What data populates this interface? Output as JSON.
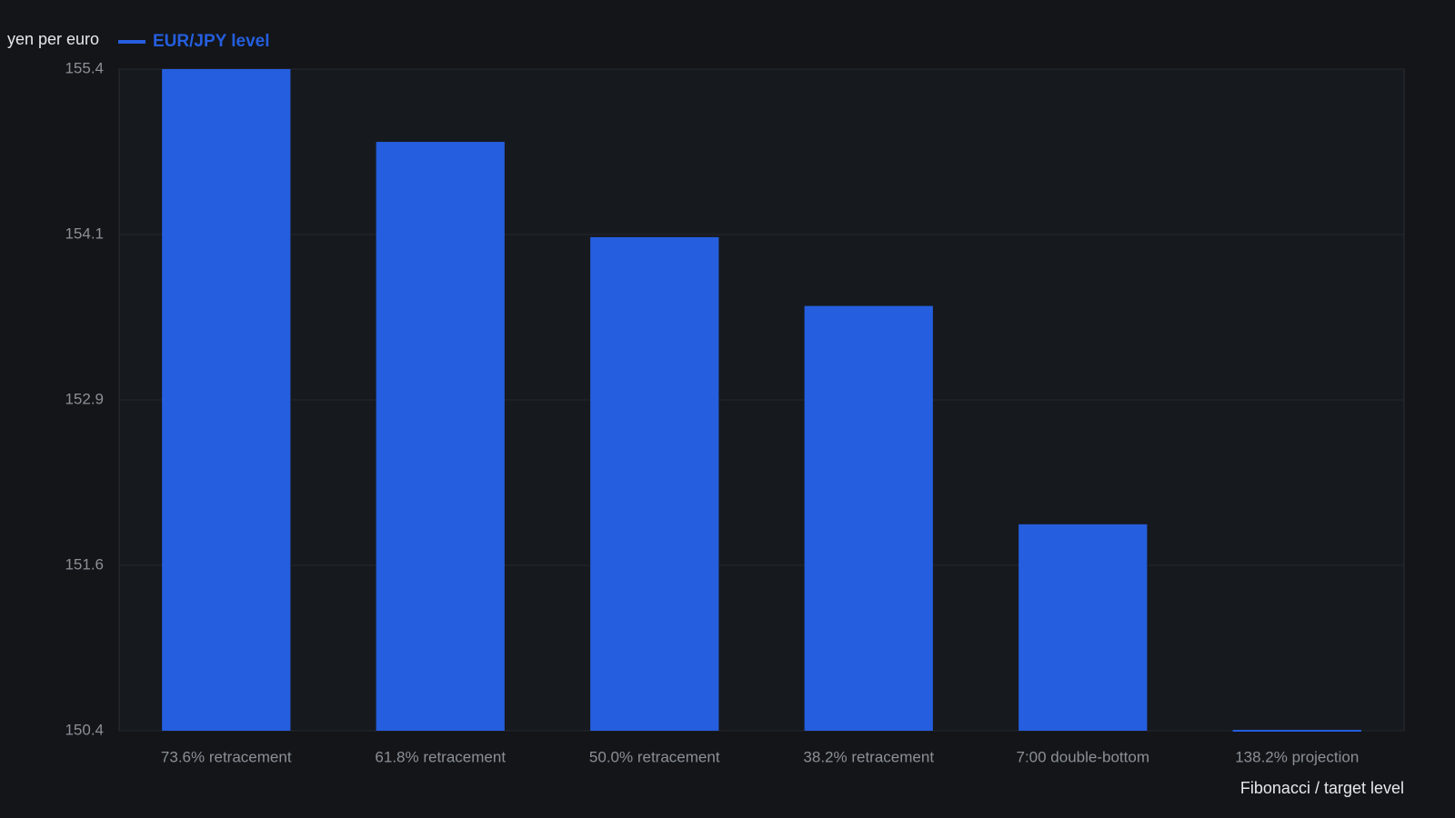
{
  "chart_data": {
    "type": "bar",
    "y_label": "yen per euro",
    "x_label": "Fibonacci / target level",
    "categories": [
      "73.6% retracement",
      "61.8% retracement",
      "50.0% retracement",
      "38.2% retracement",
      "7:00 double-bottom",
      "138.2% projection"
    ],
    "series": [
      {
        "name": "EUR/JPY level",
        "color": "#255ede",
        "values": [
          155.4,
          154.85,
          154.13,
          153.61,
          151.96,
          150.4
        ]
      }
    ],
    "ylim": [
      150.4,
      155.4
    ],
    "yticks": [
      150.4,
      {
        "value": 151.65,
        "label": "151.6"
      },
      152.9,
      {
        "value": 154.15,
        "label": "154.1"
      },
      155.4
    ],
    "grid": true
  }
}
